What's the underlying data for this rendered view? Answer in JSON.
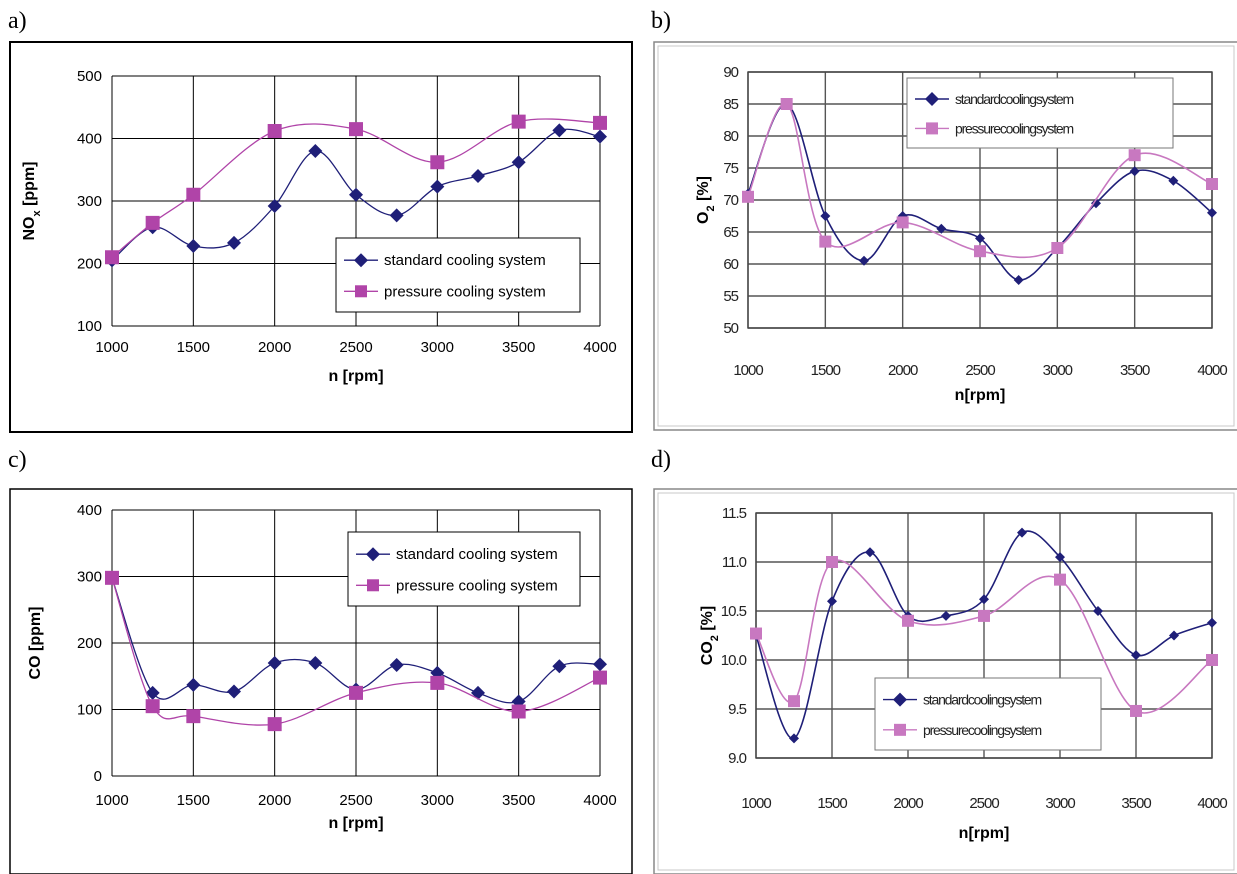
{
  "panels": [
    "a)",
    "b)",
    "c)",
    "d)"
  ],
  "colors": {
    "standard": "#1f1f78",
    "pressure": "#b044a8",
    "pressure_blurry": "#c878c0",
    "grid": "#000000",
    "frame": "#000000"
  },
  "chart_data": [
    {
      "panel": "a)",
      "type": "line",
      "title": "",
      "xlabel": "n [rpm]",
      "ylabel": "NOx [ppm]",
      "ylabel_main": "NO",
      "ylabel_sub": "x",
      "ylabel_rest": " [ppm]",
      "xlim": [
        1000,
        4000
      ],
      "ylim": [
        100,
        500
      ],
      "xticks": [
        1000,
        1500,
        2000,
        2500,
        3000,
        3500,
        4000
      ],
      "yticks": [
        100,
        200,
        300,
        400,
        500
      ],
      "grid": true,
      "legend": "bottom-right",
      "series": [
        {
          "name": "standard cooling system",
          "marker": "diamond",
          "x": [
            1000,
            1250,
            1500,
            1750,
            2000,
            2250,
            2500,
            2750,
            3000,
            3250,
            3500,
            3750,
            4000
          ],
          "y": [
            205,
            258,
            228,
            233,
            292,
            380,
            310,
            277,
            323,
            340,
            362,
            413,
            403
          ]
        },
        {
          "name": "pressure cooling system",
          "marker": "square",
          "x": [
            1000,
            1250,
            1500,
            2000,
            2500,
            3000,
            3500,
            4000
          ],
          "y": [
            210,
            265,
            310,
            412,
            415,
            362,
            427,
            425
          ]
        }
      ]
    },
    {
      "panel": "b)",
      "type": "line",
      "title": "",
      "xlabel": "n[rpm]",
      "ylabel": "O2 [%]",
      "ylabel_main": "O",
      "ylabel_sub": "2",
      "ylabel_rest": " [%]",
      "xlim": [
        1000,
        4000
      ],
      "ylim": [
        5.0,
        9.0
      ],
      "xticks": [
        1000,
        1500,
        2000,
        2500,
        3000,
        3500,
        4000
      ],
      "yticks": [
        5.0,
        5.5,
        6.0,
        6.5,
        7.0,
        7.5,
        8.0,
        8.5,
        9.0
      ],
      "yticklabels": [
        "50",
        "55",
        "60",
        "65",
        "70",
        "75",
        "80",
        "85",
        "90"
      ],
      "grid": true,
      "legend": "top-right",
      "series": [
        {
          "name": "standard cooling system",
          "marker": "diamond",
          "x": [
            1000,
            1250,
            1500,
            1750,
            2000,
            2250,
            2500,
            2750,
            3000,
            3250,
            3500,
            3750,
            4000
          ],
          "y": [
            7.1,
            8.5,
            6.75,
            6.05,
            6.75,
            6.55,
            6.4,
            5.75,
            6.25,
            6.95,
            7.45,
            7.3,
            6.8
          ]
        },
        {
          "name": "pressure cooling system",
          "marker": "square",
          "x": [
            1000,
            1250,
            1500,
            2000,
            2500,
            3000,
            3500,
            4000
          ],
          "y": [
            7.05,
            8.5,
            6.35,
            6.65,
            6.2,
            6.25,
            7.7,
            7.25
          ]
        }
      ],
      "legend_labels": [
        "standardcoolingsystem",
        "pressurecoolingsystem"
      ]
    },
    {
      "panel": "c)",
      "type": "line",
      "title": "",
      "xlabel": "n [rpm]",
      "ylabel": "CO [ppm]",
      "ylabel_main": "CO [ppm]",
      "ylabel_sub": "",
      "ylabel_rest": "",
      "xlim": [
        1000,
        4000
      ],
      "ylim": [
        0,
        400
      ],
      "xticks": [
        1000,
        1500,
        2000,
        2500,
        3000,
        3500,
        4000
      ],
      "yticks": [
        0,
        100,
        200,
        300,
        400
      ],
      "grid": true,
      "legend": "top-right",
      "series": [
        {
          "name": "standard cooling system",
          "marker": "diamond",
          "x": [
            1000,
            1250,
            1500,
            1750,
            2000,
            2250,
            2500,
            2750,
            3000,
            3250,
            3500,
            3750,
            4000
          ],
          "y": [
            298,
            125,
            137,
            127,
            170,
            170,
            130,
            167,
            155,
            125,
            112,
            165,
            168
          ]
        },
        {
          "name": "pressure cooling system",
          "marker": "square",
          "x": [
            1000,
            1250,
            1500,
            2000,
            2500,
            3000,
            3500,
            4000
          ],
          "y": [
            298,
            105,
            90,
            78,
            125,
            140,
            97,
            148
          ]
        }
      ]
    },
    {
      "panel": "d)",
      "type": "line",
      "title": "",
      "xlabel": "n[rpm]",
      "ylabel": "CO2 [%]",
      "ylabel_main": "CO",
      "ylabel_sub": "2",
      "ylabel_rest": " [%]",
      "xlim": [
        1000,
        4000
      ],
      "ylim": [
        9.0,
        11.5
      ],
      "xticks": [
        1000,
        1500,
        2000,
        2500,
        3000,
        3500,
        4000
      ],
      "yticks": [
        9.0,
        9.5,
        10.0,
        10.5,
        11.0,
        11.5
      ],
      "yticklabels": [
        "9.0",
        "9.5",
        "10.0",
        "10.5",
        "11.0",
        "11.5"
      ],
      "grid": true,
      "legend": "bottom-right",
      "series": [
        {
          "name": "standard cooling system",
          "marker": "diamond",
          "x": [
            1000,
            1250,
            1500,
            1750,
            2000,
            2250,
            2500,
            2750,
            3000,
            3250,
            3500,
            3750,
            4000
          ],
          "y": [
            10.25,
            9.2,
            10.6,
            11.1,
            10.45,
            10.45,
            10.62,
            11.3,
            11.05,
            10.5,
            10.05,
            10.25,
            10.38
          ]
        },
        {
          "name": "pressure cooling system",
          "marker": "square",
          "x": [
            1000,
            1250,
            1500,
            2000,
            2500,
            3000,
            3500,
            4000
          ],
          "y": [
            10.27,
            9.58,
            11.0,
            10.4,
            10.45,
            10.82,
            9.48,
            10.0
          ]
        }
      ],
      "legend_labels": [
        "standardcoolingsystem",
        "pressurecoolingsystem"
      ]
    }
  ]
}
